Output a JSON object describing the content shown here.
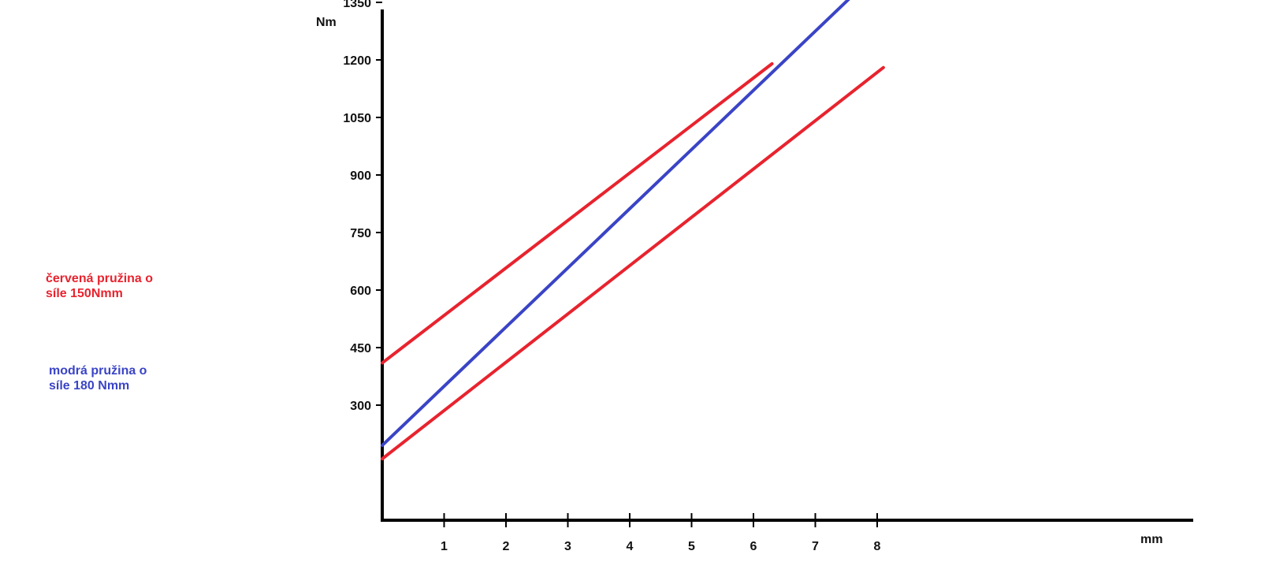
{
  "colors": {
    "red": "#e8232e",
    "blue": "#3a44c6",
    "axis": "#000000"
  },
  "legend": {
    "red": {
      "line1": "červená pružina o",
      "line2": "síle 150Nmm",
      "color": "#e8232e"
    },
    "blue": {
      "line1": "modrá pružina o",
      "line2": "síle 180 Nmm",
      "color": "#3a44c6"
    }
  },
  "chart_data": {
    "type": "line",
    "title": "",
    "xlabel": "mm",
    "ylabel": "Nm",
    "x_ticks": [
      1,
      2,
      3,
      4,
      5,
      6,
      7,
      8
    ],
    "y_ticks": [
      300,
      450,
      600,
      750,
      900,
      1050,
      1200,
      1350
    ],
    "series": [
      {
        "color": "#e8232e",
        "points": [
          [
            0,
            410
          ],
          [
            6.3,
            1190
          ]
        ]
      },
      {
        "color": "#e8232e",
        "points": [
          [
            0,
            160
          ],
          [
            8.1,
            1180
          ]
        ]
      },
      {
        "color": "#3a44c6",
        "points": [
          [
            0,
            195
          ],
          [
            8.2,
            1460
          ]
        ]
      }
    ]
  }
}
